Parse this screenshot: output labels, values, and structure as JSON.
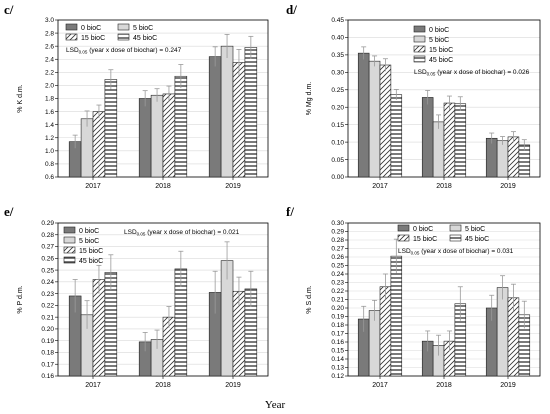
{
  "figure": {
    "x_axis_title": "Year",
    "styles": {
      "0 bioC": {
        "fill": "#7a7a7a",
        "hatch": "none"
      },
      "5 bioC": {
        "fill": "#d8d8d8",
        "hatch": "none"
      },
      "15 bioC": {
        "fill": "#ffffff",
        "hatch": "diagonal"
      },
      "45 bioC": {
        "fill": "#ffffff",
        "hatch": "horizontal"
      }
    }
  },
  "chart_data": [
    {
      "panel": "c/",
      "type": "bar",
      "ylabel": "% K d.m.",
      "ylim": [
        0.6,
        3.0
      ],
      "yticks": [
        "0.6",
        "0.8",
        "1.0",
        "1.2",
        "1.4",
        "1.6",
        "1.8",
        "2.0",
        "2.2",
        "2.4",
        "2.6",
        "2.8",
        "3.0"
      ],
      "categories": [
        "2017",
        "2018",
        "2019"
      ],
      "series": [
        {
          "name": "0 bioC",
          "values": [
            1.14,
            1.8,
            2.44
          ],
          "errors": [
            0.1,
            0.12,
            0.15
          ]
        },
        {
          "name": "5 bioC",
          "values": [
            1.49,
            1.85,
            2.6
          ],
          "errors": [
            0.12,
            0.1,
            0.18
          ]
        },
        {
          "name": "15 bioC",
          "values": [
            1.6,
            1.87,
            2.35
          ],
          "errors": [
            0.1,
            0.12,
            0.2
          ]
        },
        {
          "name": "45 bioC",
          "values": [
            2.09,
            2.14,
            2.58
          ],
          "errors": [
            0.15,
            0.18,
            0.17
          ]
        }
      ],
      "legend_placement": "top-left",
      "lsd_text": "(year x dose of biochar) = 0.247"
    },
    {
      "panel": "d/",
      "type": "bar",
      "ylabel": "% Mg d.m.",
      "ylim": [
        0.0,
        0.45
      ],
      "yticks": [
        "0.00",
        "0.05",
        "0.10",
        "0.15",
        "0.20",
        "0.25",
        "0.30",
        "0.35",
        "0.40",
        "0.45"
      ],
      "categories": [
        "2017",
        "2018",
        "2019"
      ],
      "series": [
        {
          "name": "0 bioC",
          "values": [
            0.355,
            0.228,
            0.111
          ],
          "errors": [
            0.018,
            0.02,
            0.015
          ]
        },
        {
          "name": "5 bioC",
          "values": [
            0.332,
            0.158,
            0.104
          ],
          "errors": [
            0.015,
            0.02,
            0.012
          ]
        },
        {
          "name": "15 bioC",
          "values": [
            0.321,
            0.212,
            0.115
          ],
          "errors": [
            0.018,
            0.02,
            0.015
          ]
        },
        {
          "name": "45 bioC",
          "values": [
            0.236,
            0.21,
            0.092
          ],
          "errors": [
            0.015,
            0.02,
            0.015
          ]
        }
      ],
      "legend_placement": "top-right",
      "lsd_text": "(year x dose of biochar) = 0.026"
    },
    {
      "panel": "e/",
      "type": "bar",
      "ylabel": "% P d.m.",
      "ylim": [
        0.16,
        0.29
      ],
      "yticks": [
        "0.16",
        "0.17",
        "0.18",
        "0.19",
        "0.20",
        "0.21",
        "0.22",
        "0.23",
        "0.24",
        "0.25",
        "0.26",
        "0.27",
        "0.28",
        "0.29"
      ],
      "categories": [
        "2017",
        "2018",
        "2019"
      ],
      "series": [
        {
          "name": "0 bioC",
          "values": [
            0.228,
            0.189,
            0.231
          ],
          "errors": [
            0.014,
            0.008,
            0.018
          ]
        },
        {
          "name": "5 bioC",
          "values": [
            0.212,
            0.191,
            0.258
          ],
          "errors": [
            0.012,
            0.008,
            0.016
          ]
        },
        {
          "name": "15 bioC",
          "values": [
            0.242,
            0.21,
            0.232
          ],
          "errors": [
            0.012,
            0.009,
            0.012
          ]
        },
        {
          "name": "45 bioC",
          "values": [
            0.248,
            0.251,
            0.234
          ],
          "errors": [
            0.015,
            0.015,
            0.015
          ]
        }
      ],
      "legend_placement": "top-left",
      "lsd_text": "(year x dose of biochar) = 0.021"
    },
    {
      "panel": "f/",
      "type": "bar",
      "ylabel": "% S d.m.",
      "ylim": [
        0.12,
        0.3
      ],
      "yticks": [
        "0.12",
        "0.13",
        "0.14",
        "0.15",
        "0.16",
        "0.17",
        "0.18",
        "0.19",
        "0.20",
        "0.21",
        "0.22",
        "0.23",
        "0.24",
        "0.25",
        "0.26",
        "0.27",
        "0.28",
        "0.29",
        "0.30"
      ],
      "categories": [
        "2017",
        "2018",
        "2019"
      ],
      "series": [
        {
          "name": "0 bioC",
          "values": [
            0.187,
            0.161,
            0.2
          ],
          "errors": [
            0.015,
            0.012,
            0.015
          ]
        },
        {
          "name": "5 bioC",
          "values": [
            0.197,
            0.156,
            0.224
          ],
          "errors": [
            0.012,
            0.012,
            0.014
          ]
        },
        {
          "name": "15 bioC",
          "values": [
            0.225,
            0.161,
            0.212
          ],
          "errors": [
            0.015,
            0.012,
            0.016
          ]
        },
        {
          "name": "45 bioC",
          "values": [
            0.261,
            0.205,
            0.192
          ],
          "errors": [
            0.02,
            0.02,
            0.016
          ]
        }
      ],
      "legend_placement": "top-right",
      "lsd_text": "(year x dose of biochar) = 0.031"
    }
  ]
}
